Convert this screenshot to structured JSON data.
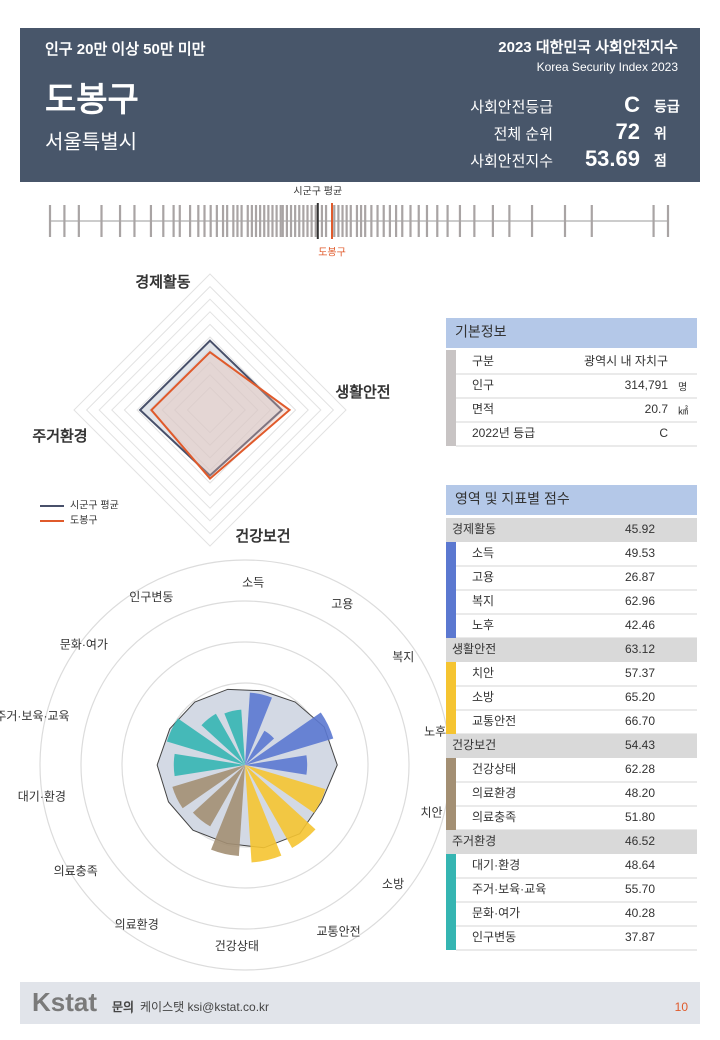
{
  "header": {
    "category": "인구 20만 이상 50만 미만",
    "report": "2023 대한민국 사회안전지수",
    "report_en": "Korea Security Index 2023",
    "district": "도봉구",
    "region": "서울특별시",
    "stats": [
      {
        "label": "사회안전등급",
        "value": "C",
        "unit": "등급"
      },
      {
        "label": "전체 순위",
        "value": 72,
        "unit": "위"
      },
      {
        "label": "사회안전지수",
        "value": 53.69,
        "unit": "점"
      }
    ]
  },
  "distribution": {
    "average_label": "시군구 평균",
    "district_label": "도봉구",
    "xlim": [
      40,
      70
    ],
    "average": 53.0,
    "values": [
      40.0,
      40.7,
      41.4,
      42.5,
      43.4,
      44.1,
      44.9,
      45.5,
      46.0,
      46.3,
      46.8,
      47.2,
      47.5,
      47.8,
      48.1,
      48.4,
      48.6,
      48.9,
      49.1,
      49.3,
      49.6,
      49.8,
      50.0,
      50.2,
      50.4,
      50.6,
      50.8,
      51.0,
      51.2,
      51.3,
      51.5,
      51.7,
      51.9,
      52.1,
      52.3,
      52.5,
      52.7,
      52.9,
      53.2,
      53.4,
      53.8,
      54.0,
      54.2,
      54.4,
      54.6,
      54.9,
      55.1,
      55.3,
      55.6,
      55.9,
      56.2,
      56.5,
      56.8,
      57.1,
      57.5,
      57.9,
      58.3,
      58.8,
      59.3,
      59.9,
      60.6,
      61.5,
      62.3,
      63.4,
      65.0,
      66.3,
      69.3,
      70.0
    ]
  },
  "radar": {
    "axes": [
      "경제활동",
      "생활안전",
      "건강보건",
      "주거환경"
    ],
    "rlim": [
      0,
      100
    ],
    "series": [
      {
        "name": "시군구 평균",
        "color": "#48506a",
        "values": [
          55.0,
          57.0,
          52.0,
          55.5
        ]
      },
      {
        "name": "도봉구",
        "color": "#e05a2b"
      }
    ]
  },
  "polar": {
    "rlim": [
      0,
      140
    ],
    "average_color": "#d3d9e4",
    "labels": [
      "소득",
      "고용",
      "복지",
      "노후",
      "치안",
      "소방",
      "교통안전",
      "건강상태",
      "의료환경",
      "의료충족",
      "대기·환경",
      "주거·보육·교육",
      "문화·여가",
      "인구변동"
    ],
    "average": [
      52,
      55,
      60,
      63,
      58,
      60,
      58,
      55,
      57,
      58,
      60,
      57,
      55,
      53
    ]
  },
  "basic_info": {
    "title": "기본정보",
    "rows": [
      [
        "구분",
        "광역시 내 자치구"
      ],
      [
        "인구",
        "314,791",
        "명"
      ],
      [
        "면적",
        "20.7",
        "㎢"
      ],
      [
        "2022년 등급",
        "C"
      ]
    ]
  },
  "scores": {
    "title": "영역 및 지표별 점수",
    "groups": [
      {
        "name": "경제활동",
        "score": 45.92,
        "color": "#5b78d0",
        "items": [
          {
            "name": "소득",
            "score": 49.53
          },
          {
            "name": "고용",
            "score": 26.87
          },
          {
            "name": "복지",
            "score": 62.96
          },
          {
            "name": "노후",
            "score": 42.46
          }
        ]
      },
      {
        "name": "생활안전",
        "score": 63.12,
        "color": "#f5c431",
        "items": [
          {
            "name": "치안",
            "score": 57.37
          },
          {
            "name": "소방",
            "score": 65.2,
            "score_label": "65.20"
          },
          {
            "name": "교통안전",
            "score": 66.7,
            "score_label": "66.70"
          }
        ]
      },
      {
        "name": "건강보건",
        "score": 54.43,
        "color": "#a38f73",
        "items": [
          {
            "name": "건강상태",
            "score": 62.28
          },
          {
            "name": "의료환경",
            "score": 48.2,
            "score_label": "48.20"
          },
          {
            "name": "의료충족",
            "score": 51.8,
            "score_label": "51.80"
          }
        ]
      },
      {
        "name": "주거환경",
        "score": 46.52,
        "color": "#35b5b2",
        "items": [
          {
            "name": "대기·환경",
            "score": 48.64
          },
          {
            "name": "주거·보육·교육",
            "score": 55.7,
            "score_label": "55.70"
          },
          {
            "name": "문화·여가",
            "score": 40.28
          },
          {
            "name": "인구변동",
            "score": 37.87
          }
        ]
      }
    ]
  },
  "footer": {
    "logo": "Kstat",
    "contact_label": "문의",
    "contact": "케이스탯 ksi@kstat.co.kr",
    "page": 10
  }
}
